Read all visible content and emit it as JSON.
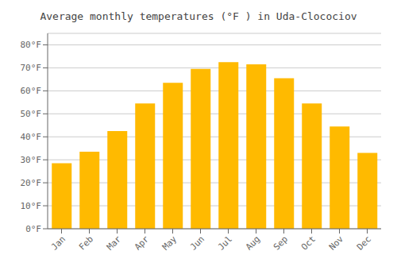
{
  "chart_data": {
    "type": "bar",
    "title": "Average monthly temperatures (°F ) in Uda-Clocociov",
    "categories": [
      "Jan",
      "Feb",
      "Mar",
      "Apr",
      "May",
      "Jun",
      "Jul",
      "Aug",
      "Sep",
      "Oct",
      "Nov",
      "Dec"
    ],
    "values": [
      28.5,
      33.5,
      42.5,
      54.5,
      63.5,
      69.5,
      72.5,
      71.5,
      65.5,
      54.5,
      44.5,
      33.0
    ],
    "color": "#FFBA00",
    "ylim": [
      0,
      85
    ],
    "yticks": [
      {
        "value": 0,
        "label": "0°F"
      },
      {
        "value": 10,
        "label": "10°F"
      },
      {
        "value": 20,
        "label": "20°F"
      },
      {
        "value": 30,
        "label": "30°F"
      },
      {
        "value": 40,
        "label": "40°F"
      },
      {
        "value": 50,
        "label": "50°F"
      },
      {
        "value": 60,
        "label": "60°F"
      },
      {
        "value": 70,
        "label": "70°F"
      },
      {
        "value": 80,
        "label": "80°F"
      }
    ],
    "grid": true
  }
}
